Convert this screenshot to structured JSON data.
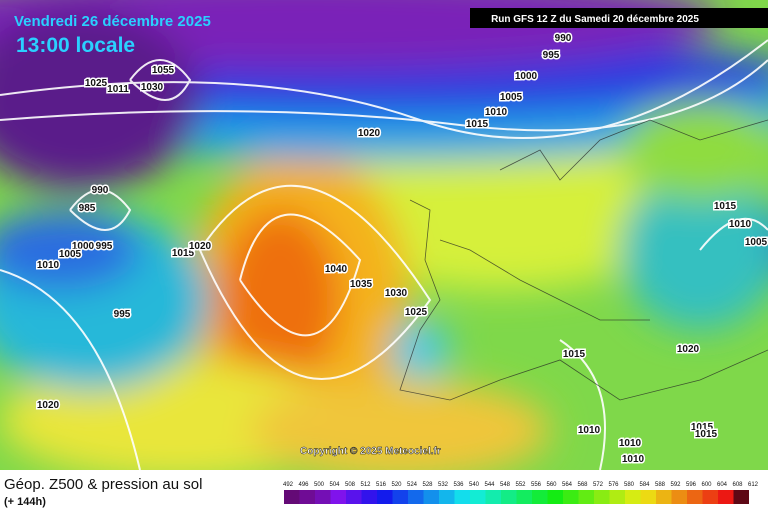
{
  "header": {
    "valid_date": "Vendredi 26 décembre 2025",
    "local_time": "13:00 locale",
    "run": "Run GFS 12 Z du Samedi 20 décembre 2025"
  },
  "copyright": "Copyright © 2025 Meteociel.fr",
  "isobar_labels": [
    1055,
    1030,
    1025,
    1011,
    990,
    985,
    1000,
    995,
    1005,
    1010,
    1015,
    1020,
    995,
    1020,
    1040,
    1035,
    1030,
    1025,
    1020,
    1015,
    1010,
    1005,
    1000,
    995,
    990,
    1015,
    1020,
    1015,
    1010,
    1005,
    1010,
    1010,
    1010,
    1015,
    1015
  ],
  "legend": {
    "title": "Géop. Z500 & pression au sol",
    "lead_time": "(+ 144h)",
    "scale": [
      492,
      496,
      500,
      504,
      508,
      512,
      516,
      520,
      524,
      528,
      532,
      536,
      540,
      544,
      548,
      552,
      556,
      560,
      564,
      568,
      572,
      576,
      580,
      584,
      588,
      592,
      596,
      600,
      604,
      608,
      612
    ]
  }
}
